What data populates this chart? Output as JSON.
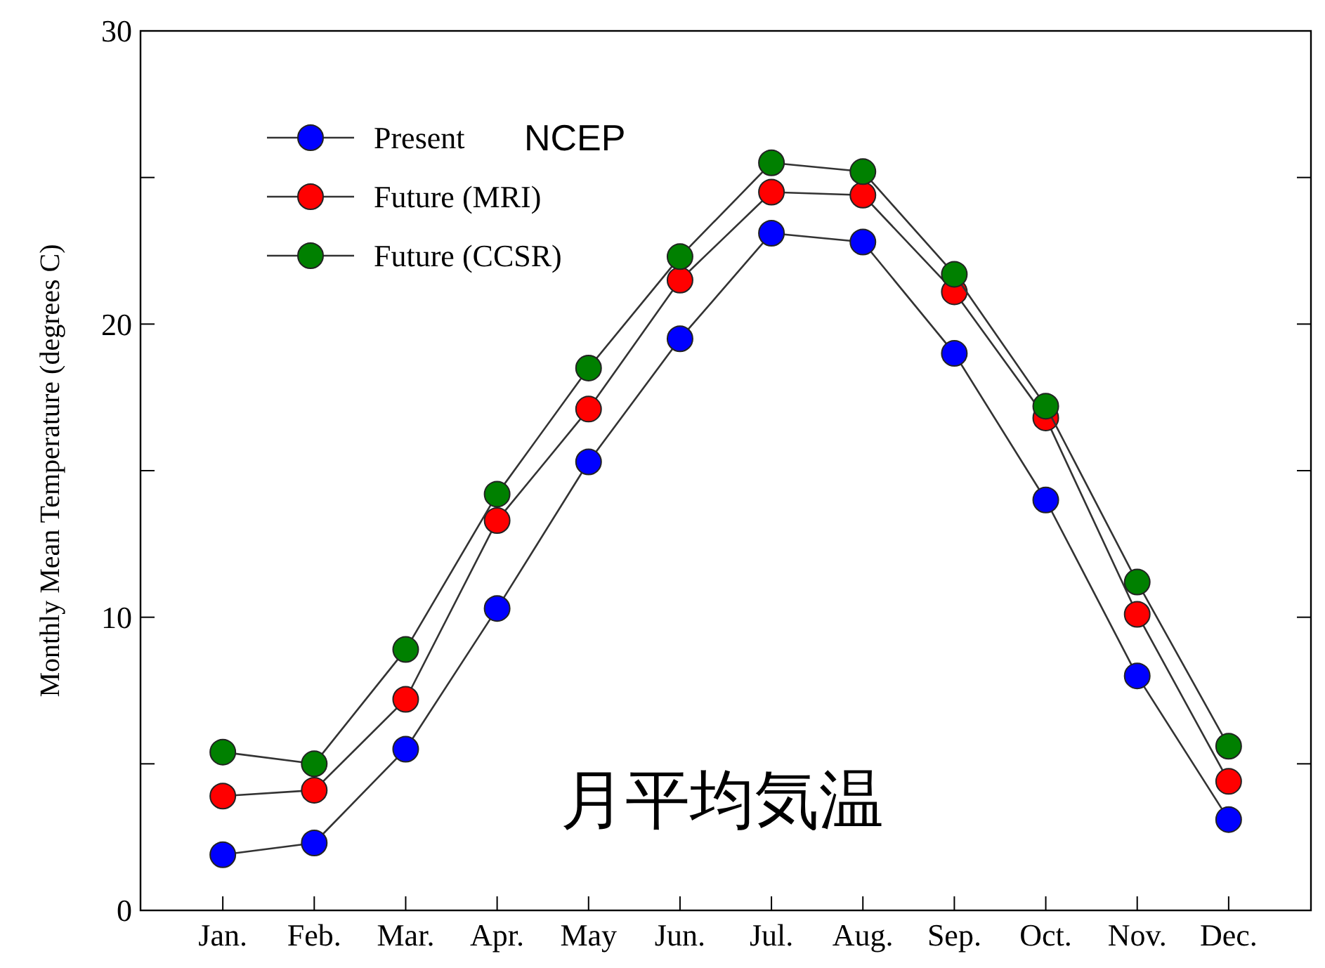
{
  "chart_data": {
    "type": "line",
    "ylabel": "Monthly Mean Temperature (degrees C)",
    "categories": [
      "Jan.",
      "Feb.",
      "Mar.",
      "Apr.",
      "May",
      "Jun.",
      "Jul.",
      "Aug.",
      "Sep.",
      "Oct.",
      "Nov.",
      "Dec."
    ],
    "series": [
      {
        "name": "Present",
        "color": "#0000ff",
        "values": [
          1.9,
          2.3,
          5.5,
          10.3,
          15.3,
          19.5,
          23.1,
          22.8,
          19.0,
          14.0,
          8.0,
          3.1
        ]
      },
      {
        "name": "Future (MRI)",
        "color": "#ff0000",
        "values": [
          3.9,
          4.1,
          7.2,
          13.3,
          17.1,
          21.5,
          24.5,
          24.4,
          21.1,
          16.8,
          10.1,
          4.4
        ]
      },
      {
        "name": "Future (CCSR)",
        "color": "#008000",
        "values": [
          5.4,
          5.0,
          8.9,
          14.2,
          18.5,
          22.3,
          25.5,
          25.2,
          21.7,
          17.2,
          11.2,
          5.6
        ]
      }
    ],
    "ylim": [
      0,
      30
    ],
    "yticks": [
      0,
      {
        "value": 5,
        "label": null
      },
      10,
      {
        "value": 15,
        "label": null
      },
      20,
      {
        "value": 25,
        "label": null
      },
      30
    ],
    "annotations": [
      "NCEP",
      "月平均気温"
    ],
    "legend": "top left",
    "marker": "circle",
    "line_style": "solid",
    "grid": false
  }
}
